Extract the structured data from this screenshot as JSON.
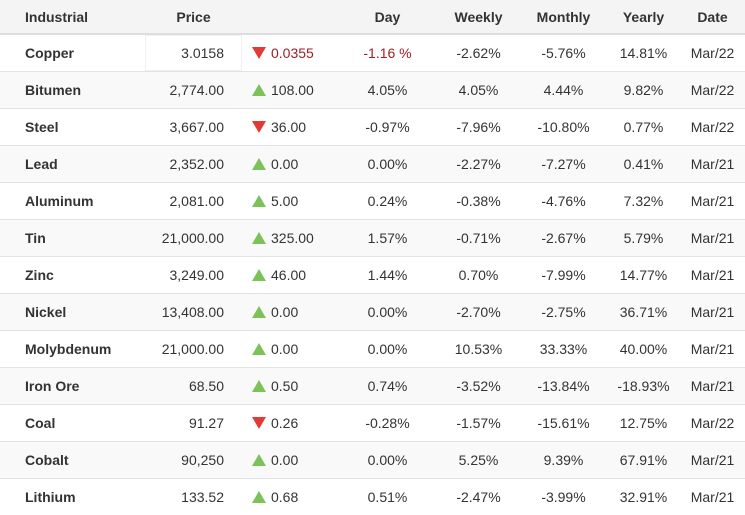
{
  "headers": {
    "name": "Industrial",
    "price": "Price",
    "change": "",
    "day": "Day",
    "weekly": "Weekly",
    "monthly": "Monthly",
    "yearly": "Yearly",
    "date": "Date"
  },
  "colors": {
    "up": "#7cc15a",
    "down": "#e23a36",
    "negative_text": "#a11e22"
  },
  "rows": [
    {
      "name": "Copper",
      "price": "3.0158",
      "direction": "down",
      "change": "0.0355",
      "day": "-1.16 %",
      "weekly": "-2.62%",
      "monthly": "-5.76%",
      "yearly": "14.81%",
      "date": "Mar/22"
    },
    {
      "name": "Bitumen",
      "price": "2,774.00",
      "direction": "up",
      "change": "108.00",
      "day": "4.05%",
      "weekly": "4.05%",
      "monthly": "4.44%",
      "yearly": "9.82%",
      "date": "Mar/22"
    },
    {
      "name": "Steel",
      "price": "3,667.00",
      "direction": "down",
      "change": "36.00",
      "day": "-0.97%",
      "weekly": "-7.96%",
      "monthly": "-10.80%",
      "yearly": "0.77%",
      "date": "Mar/22"
    },
    {
      "name": "Lead",
      "price": "2,352.00",
      "direction": "up",
      "change": "0.00",
      "day": "0.00%",
      "weekly": "-2.27%",
      "monthly": "-7.27%",
      "yearly": "0.41%",
      "date": "Mar/21"
    },
    {
      "name": "Aluminum",
      "price": "2,081.00",
      "direction": "up",
      "change": "5.00",
      "day": "0.24%",
      "weekly": "-0.38%",
      "monthly": "-4.76%",
      "yearly": "7.32%",
      "date": "Mar/21"
    },
    {
      "name": "Tin",
      "price": "21,000.00",
      "direction": "up",
      "change": "325.00",
      "day": "1.57%",
      "weekly": "-0.71%",
      "monthly": "-2.67%",
      "yearly": "5.79%",
      "date": "Mar/21"
    },
    {
      "name": "Zinc",
      "price": "3,249.00",
      "direction": "up",
      "change": "46.00",
      "day": "1.44%",
      "weekly": "0.70%",
      "monthly": "-7.99%",
      "yearly": "14.77%",
      "date": "Mar/21"
    },
    {
      "name": "Nickel",
      "price": "13,408.00",
      "direction": "up",
      "change": "0.00",
      "day": "0.00%",
      "weekly": "-2.70%",
      "monthly": "-2.75%",
      "yearly": "36.71%",
      "date": "Mar/21"
    },
    {
      "name": "Molybdenum",
      "price": "21,000.00",
      "direction": "up",
      "change": "0.00",
      "day": "0.00%",
      "weekly": "10.53%",
      "monthly": "33.33%",
      "yearly": "40.00%",
      "date": "Mar/21"
    },
    {
      "name": "Iron Ore",
      "price": "68.50",
      "direction": "up",
      "change": "0.50",
      "day": "0.74%",
      "weekly": "-3.52%",
      "monthly": "-13.84%",
      "yearly": "-18.93%",
      "date": "Mar/21"
    },
    {
      "name": "Coal",
      "price": "91.27",
      "direction": "down",
      "change": "0.26",
      "day": "-0.28%",
      "weekly": "-1.57%",
      "monthly": "-15.61%",
      "yearly": "12.75%",
      "date": "Mar/22"
    },
    {
      "name": "Cobalt",
      "price": "90,250",
      "direction": "up",
      "change": "0.00",
      "day": "0.00%",
      "weekly": "5.25%",
      "monthly": "9.39%",
      "yearly": "67.91%",
      "date": "Mar/21"
    },
    {
      "name": "Lithium",
      "price": "133.52",
      "direction": "up",
      "change": "0.68",
      "day": "0.51%",
      "weekly": "-2.47%",
      "monthly": "-3.99%",
      "yearly": "32.91%",
      "date": "Mar/21"
    }
  ]
}
